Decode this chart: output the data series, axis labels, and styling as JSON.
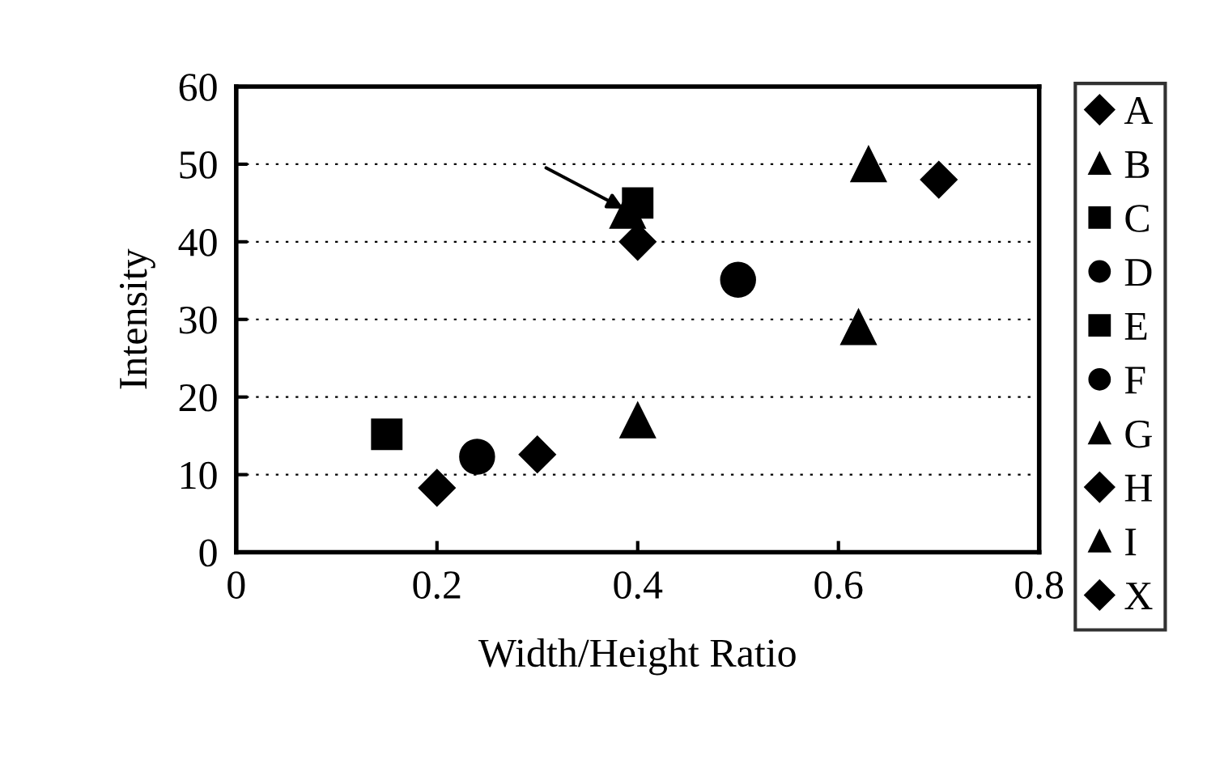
{
  "chart_data": {
    "type": "scatter",
    "xlabel": "Width/Height Ratio",
    "ylabel": "Intensity",
    "xlim": [
      0,
      0.8
    ],
    "xticks": [
      0,
      0.2,
      0.4,
      0.6,
      0.8
    ],
    "ylim": [
      0,
      60
    ],
    "yticks": [
      0,
      10,
      20,
      30,
      40,
      50,
      60
    ],
    "grid": "y",
    "legend": "right",
    "series": [
      {
        "name": "A",
        "color": "#000000",
        "marker": "diamond",
        "x": [
          0.2
        ],
        "values": [
          8.3
        ]
      },
      {
        "name": "B",
        "color": "#000000",
        "marker": "triangle",
        "x": [
          0.39
        ],
        "values": [
          44
        ]
      },
      {
        "name": "C",
        "color": "#000000",
        "marker": "square",
        "x": [
          0.15
        ],
        "values": [
          15.2
        ]
      },
      {
        "name": "D",
        "color": "#000000",
        "marker": "circle",
        "x": [
          0.5
        ],
        "values": [
          35.1
        ]
      },
      {
        "name": "E",
        "color": "#000000",
        "marker": "square",
        "x": [
          0.4
        ],
        "values": [
          45
        ]
      },
      {
        "name": "F",
        "color": "#000000",
        "marker": "circle",
        "x": [
          0.24
        ],
        "values": [
          12.3
        ]
      },
      {
        "name": "G",
        "color": "#000000",
        "marker": "triangle",
        "x": [
          0.62,
          0.63
        ],
        "values": [
          29,
          50
        ]
      },
      {
        "name": "H",
        "color": "#000000",
        "marker": "diamond",
        "x": [
          0.3,
          0.4
        ],
        "values": [
          12.6,
          40
        ]
      },
      {
        "name": "I",
        "color": "#000000",
        "marker": "triangle",
        "x": [
          0.4
        ],
        "values": [
          17
        ]
      },
      {
        "name": "X",
        "color": "#000000",
        "marker": "diamond",
        "x": [
          0.7
        ],
        "values": [
          48
        ]
      }
    ]
  }
}
